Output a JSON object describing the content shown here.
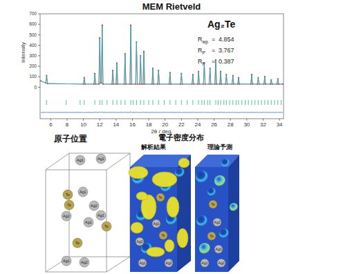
{
  "title": "MEM Rietveld",
  "chart_data": {
    "type": "line",
    "formula": "Ag₂Te",
    "x_label": "2θ / deg.",
    "y_label": "Intensity",
    "xlim": [
      4.7,
      34.5
    ],
    "xticks": [
      6,
      8,
      10,
      12,
      14,
      16,
      18,
      20,
      22,
      24,
      26,
      28,
      30,
      32,
      34
    ],
    "ylim": [
      -300,
      700
    ],
    "yticks": [
      0,
      100,
      200,
      300,
      400,
      500,
      600,
      700
    ],
    "x": [
      4.8,
      5.4,
      5.5,
      5.6,
      10.0,
      10.1,
      10.2,
      11.3,
      11.4,
      11.5,
      11.9,
      12.0,
      12.1,
      12.2,
      12.3,
      12.4,
      13.5,
      13.6,
      13.7,
      14.0,
      14.1,
      14.2,
      15.0,
      15.1,
      15.2,
      15.7,
      15.8,
      15.9,
      16.4,
      16.5,
      16.6,
      16.9,
      17.0,
      17.1,
      17.3,
      17.4,
      17.5,
      18.4,
      18.5,
      18.6,
      19.1,
      19.2,
      19.3,
      20.5,
      20.6,
      20.7,
      21.9,
      22.0,
      22.1,
      23.3,
      23.4,
      23.5,
      24.0,
      24.1,
      24.2,
      24.7,
      24.8,
      24.9,
      25.4,
      25.5,
      25.6,
      26.1,
      26.2,
      26.3,
      26.7,
      26.8,
      26.9,
      27.4,
      27.5,
      27.6,
      28.2,
      28.3,
      28.4,
      28.9,
      29.0,
      29.1,
      30.5,
      30.6,
      30.7,
      31.3,
      31.4,
      31.5,
      32.1,
      32.2,
      32.3,
      32.9,
      33.0,
      33.1,
      33.7,
      33.8,
      33.9,
      34.4
    ],
    "series": [
      {
        "color": "#c8372d",
        "marker": "dot",
        "values": [
          60,
          40,
          110,
          35,
          30,
          90,
          30,
          30,
          130,
          30,
          30,
          470,
          40,
          40,
          590,
          30,
          30,
          160,
          30,
          30,
          230,
          30,
          30,
          320,
          30,
          30,
          590,
          30,
          30,
          430,
          30,
          30,
          300,
          30,
          30,
          340,
          30,
          30,
          180,
          30,
          30,
          160,
          30,
          30,
          140,
          30,
          30,
          130,
          30,
          30,
          120,
          30,
          30,
          150,
          30,
          30,
          230,
          30,
          30,
          180,
          30,
          30,
          260,
          30,
          30,
          150,
          30,
          30,
          120,
          30,
          30,
          110,
          30,
          30,
          90,
          30,
          30,
          120,
          30,
          30,
          90,
          30,
          30,
          100,
          30,
          30,
          70,
          30,
          30,
          80,
          30,
          30
        ]
      },
      {
        "color": "#19b3c9",
        "line_style": "solid",
        "values": [
          60,
          40,
          108,
          35,
          30,
          92,
          30,
          30,
          126,
          30,
          30,
          465,
          40,
          40,
          585,
          30,
          30,
          158,
          30,
          30,
          232,
          30,
          30,
          316,
          30,
          30,
          584,
          30,
          30,
          428,
          30,
          30,
          302,
          30,
          30,
          336,
          30,
          30,
          178,
          30,
          30,
          162,
          30,
          30,
          138,
          30,
          30,
          132,
          30,
          30,
          118,
          30,
          30,
          152,
          30,
          30,
          228,
          30,
          30,
          182,
          30,
          30,
          256,
          30,
          30,
          148,
          30,
          30,
          122,
          30,
          30,
          108,
          30,
          30,
          92,
          30,
          30,
          118,
          30,
          30,
          92,
          30,
          30,
          98,
          30,
          30,
          72,
          30,
          30,
          78,
          30,
          30
        ]
      },
      {
        "color": "#3d6fb0",
        "line_style": "solid",
        "values": [
          -240,
          -240,
          -238,
          -240,
          -240,
          -242,
          -240,
          -240,
          -236,
          -240,
          -240,
          -235,
          -240,
          -240,
          -235,
          -240,
          -240,
          -238,
          -240,
          -240,
          -242,
          -240,
          -240,
          -236,
          -240,
          -240,
          -234,
          -240,
          -240,
          -238,
          -240,
          -240,
          -242,
          -240,
          -240,
          -236,
          -240,
          -240,
          -238,
          -240,
          -240,
          -242,
          -240,
          -240,
          -238,
          -240,
          -240,
          -242,
          -240,
          -240,
          -238,
          -240,
          -240,
          -242,
          -240,
          -240,
          -238,
          -240,
          -240,
          -242,
          -240,
          -240,
          -236,
          -240,
          -240,
          -238,
          -240,
          -240,
          -242,
          -240,
          -240,
          -238,
          -240,
          -240,
          -242,
          -240,
          -240,
          -238,
          -240,
          -240,
          -242,
          -240,
          -240,
          -238,
          -240,
          -240,
          -242,
          -240,
          -240,
          -238,
          -240,
          -240
        ]
      }
    ],
    "reflections": {
      "color": "#2bb673",
      "x": [
        5.5,
        7.9,
        9.6,
        10.1,
        11.4,
        12.0,
        12.3,
        12.9,
        13.6,
        14.1,
        14.6,
        15.1,
        15.8,
        16.1,
        16.5,
        17.0,
        17.4,
        18.0,
        18.5,
        19.2,
        19.9,
        20.6,
        21.3,
        22.0,
        22.7,
        23.4,
        24.1,
        24.5,
        24.8,
        25.2,
        25.5,
        26.2,
        26.5,
        26.8,
        27.2,
        27.5,
        27.9,
        28.3,
        28.7,
        29.0,
        29.4,
        29.8,
        30.2,
        30.6,
        31.0,
        31.4,
        31.8,
        32.2,
        32.6,
        33.0,
        33.4,
        33.8,
        34.2
      ]
    },
    "statistics": [
      {
        "symbol": "R",
        "subscript": "wp",
        "relation": "=",
        "value": 4.854
      },
      {
        "symbol": "R",
        "subscript": "P",
        "relation": "=",
        "value": 3.767
      },
      {
        "symbol": "R",
        "subscript": "F",
        "relation": "=",
        "value": 0.387
      }
    ]
  },
  "atom_positions": {
    "title": "原子位置",
    "atoms": [
      "Ag1",
      "Ag2",
      "Te",
      "Ag1",
      "Te",
      "Ag2",
      "Ag2",
      "Ag1",
      "Ag1",
      "Te",
      "Te",
      "Ag1",
      "Ag2"
    ],
    "colors": [
      "#b9b9b9",
      "#b9b9b9",
      "#b8a54a",
      "#b9b9b9",
      "#b8a54a",
      "#b9b9b9",
      "#b9b9b9",
      "#b9b9b9",
      "#b9b9b9",
      "#b8a54a",
      "#b8a54a",
      "#b9b9b9",
      "#b9b9b9"
    ]
  },
  "electron_density": {
    "title": "電子密度分布",
    "analysis": {
      "title": "解析結果",
      "atoms": [
        "Te",
        "Ag1",
        "Te",
        "Ag2",
        "Ag1",
        "Ag2"
      ],
      "colors": [
        "#b8a54a",
        "#b9b9b9",
        "#b8a54a",
        "#b9b9b9",
        "#b9b9b9",
        "#b9b9b9"
      ]
    },
    "theory": {
      "title": "理論予測",
      "atoms": [
        "Te",
        "Ag2",
        "Te",
        "Ag2",
        "Ag1",
        "Ag2"
      ],
      "colors": [
        "#b8a54a",
        "#b9b9b9",
        "#b8a54a",
        "#b9b9b9",
        "#b9b9b9",
        "#b9b9b9"
      ]
    }
  }
}
